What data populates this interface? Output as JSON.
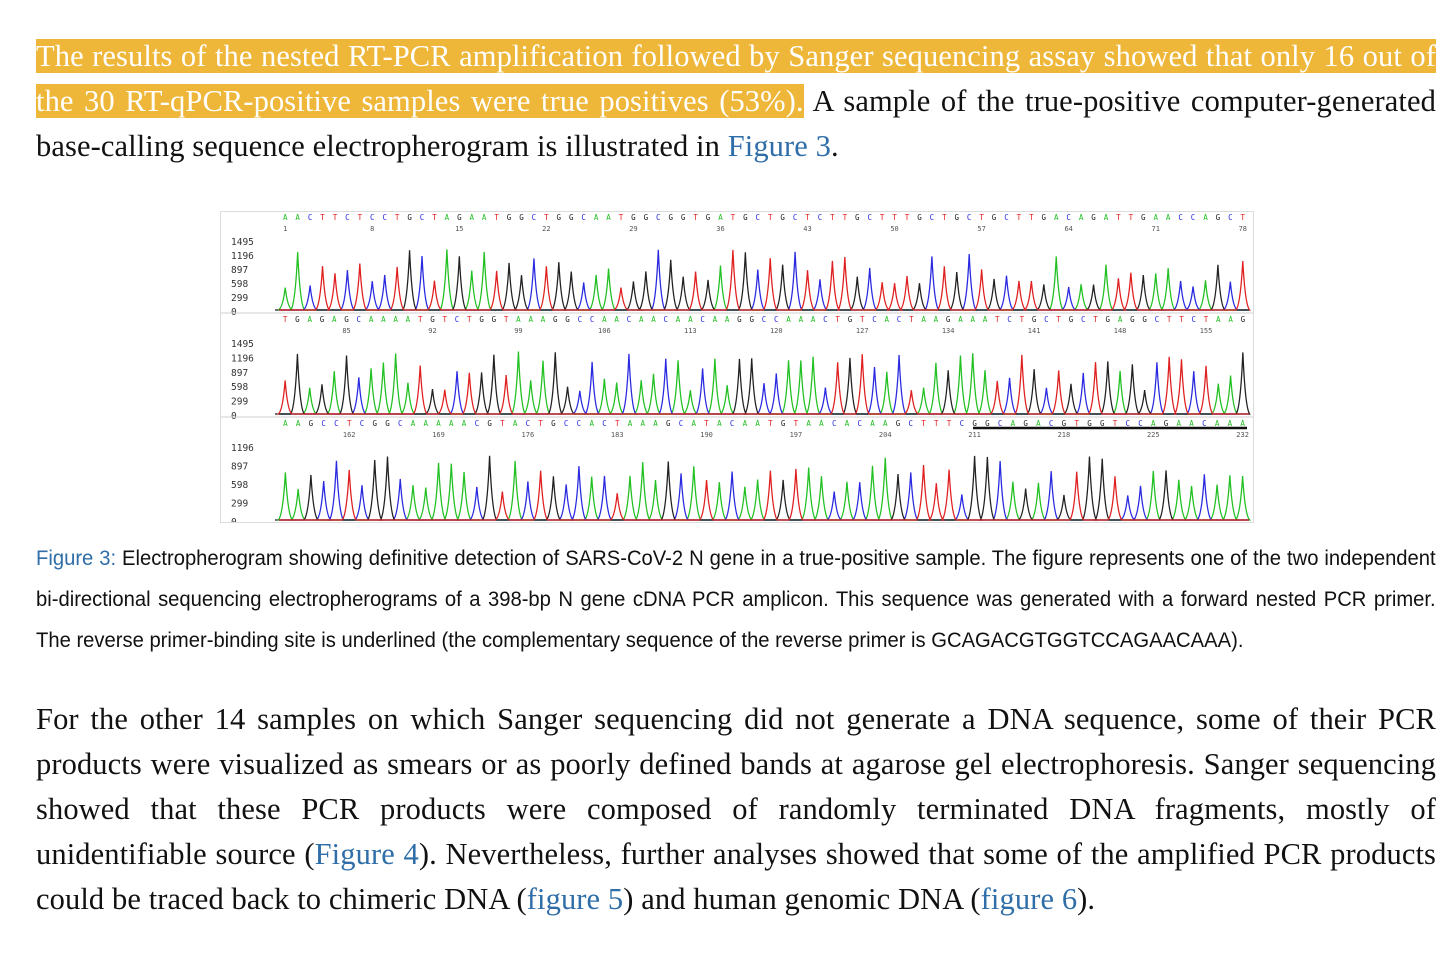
{
  "paragraph1": {
    "highlighted": "The results of the nested RT-PCR amplification followed by Sanger sequencing assay showed that only 16 out of the 30 RT-qPCR-positive samples were true positives (53%).",
    "text_before_link": " A sample of the true-positive computer-generated base-calling sequence electropherogram is illustrated in ",
    "link": "Figure 3",
    "text_after_link": "."
  },
  "figure": {
    "panels": [
      {
        "sequence": "AACTTCTCCTGCTAGAATGGCTGGCAATGGCGGTGATGCTGCTCTTGCTTTGCTGCTGCTTGACAGATTGAACCAGCT",
        "positions": [
          "1",
          "8",
          "15",
          "22",
          "29",
          "36",
          "43",
          "50",
          "57",
          "64",
          "71",
          "78"
        ],
        "yticks": [
          "1495",
          "1196",
          "897",
          "598",
          "299",
          "0"
        ]
      },
      {
        "sequence": "TGAGAGCAAAATGTCTGGTAAAGGCCAACAACAACAAGGCCAAACTGTCACTAAGAAATCTGCTGCTGAGGCTTCTAAG",
        "positions": [
          "85",
          "92",
          "99",
          "106",
          "113",
          "120",
          "127",
          "134",
          "141",
          "148",
          "155"
        ],
        "yticks": [
          "1495",
          "1196",
          "897",
          "598",
          "299",
          "0"
        ]
      },
      {
        "sequence": "AAGCCTCGGCAAAAACGTACTGCCACTAAAGCATACAATGTAACACAAGCTTTCGGCAGACGTGGTCCAGAACAAA",
        "positions": [
          "162",
          "169",
          "176",
          "183",
          "190",
          "197",
          "204",
          "211",
          "218",
          "225",
          "232"
        ],
        "yticks": [
          "1196",
          "897",
          "598",
          "299",
          "0"
        ]
      }
    ],
    "colors": {
      "A": "#22c022",
      "C": "#2a2ae0",
      "G": "#222222",
      "T": "#e02020"
    }
  },
  "caption": {
    "label": "Figure 3:",
    "text": " Electropherogram showing definitive detection of SARS-CoV-2 N gene in a true-positive sample. The figure represents one of the two independent bi-directional sequencing electropherograms of a 398-bp N gene cDNA PCR amplicon. This sequence was generated with a forward nested PCR primer. The reverse primer-binding site is underlined (the complementary sequence of the reverse primer is GCAGACGTGGTCCAGAACAAA)."
  },
  "paragraph2": {
    "part1": "For the other 14 samples on which Sanger sequencing did not generate a DNA sequence, some of their PCR products were visualized as smears or as poorly defined bands at agarose gel electrophoresis. Sanger sequencing showed that these PCR products were composed of randomly terminated DNA fragments, mostly of unidentifiable source (",
    "link1": "Figure 4",
    "part2": "). Nevertheless, further analyses showed that some of the amplified PCR products could be traced back to chimeric DNA (",
    "link2": "figure 5",
    "part3": ") and human genomic DNA (",
    "link3": "figure 6",
    "part4": ")."
  }
}
